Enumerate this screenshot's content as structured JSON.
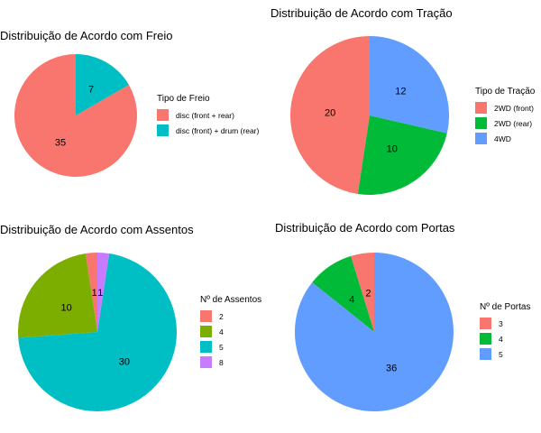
{
  "chart_data": [
    {
      "type": "pie",
      "title": "Distribuição de Acordo com Freio",
      "legend_title": "Tipo de Freio",
      "legend_position": "right",
      "slices": [
        {
          "label": "disc (front + rear)",
          "value": 35,
          "color": "#F8766D"
        },
        {
          "label": "disc (front) + drum (rear)",
          "value": 7,
          "color": "#00BFC4"
        }
      ]
    },
    {
      "type": "pie",
      "title": "Distribuição de Acordo com Tração",
      "legend_title": "Tipo de Tração",
      "legend_position": "right",
      "slices": [
        {
          "label": "2WD (front)",
          "value": 20,
          "color": "#F8766D"
        },
        {
          "label": "2WD (rear)",
          "value": 10,
          "color": "#00BA38"
        },
        {
          "label": "4WD",
          "value": 12,
          "color": "#619CFF"
        }
      ]
    },
    {
      "type": "pie",
      "title": "Distribuição de Acordo com Assentos",
      "legend_title": "Nº de Assentos",
      "legend_position": "right",
      "slices": [
        {
          "label": "2",
          "value": 1,
          "color": "#F8766D"
        },
        {
          "label": "4",
          "value": 10,
          "color": "#7CAE00"
        },
        {
          "label": "5",
          "value": 30,
          "color": "#00BFC4"
        },
        {
          "label": "8",
          "value": 1,
          "color": "#C77CFF"
        }
      ]
    },
    {
      "type": "pie",
      "title": "Distribuição de Acordo com Portas",
      "legend_title": "Nº de Portas",
      "legend_position": "right",
      "slices": [
        {
          "label": "3",
          "value": 2,
          "color": "#F8766D"
        },
        {
          "label": "4",
          "value": 4,
          "color": "#00BA38"
        },
        {
          "label": "5",
          "value": 36,
          "color": "#619CFF"
        }
      ]
    }
  ]
}
